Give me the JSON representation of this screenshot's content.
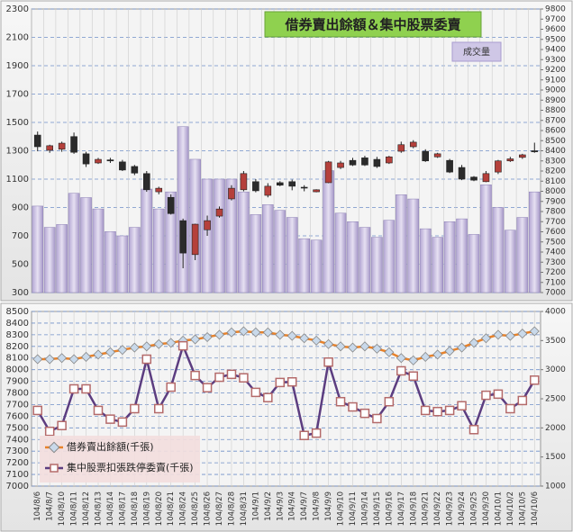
{
  "chart_data": [
    {
      "type": "candlestick",
      "title": "借券賣出餘額＆集中股票委賣",
      "ylim": [
        300,
        2300
      ],
      "yticks": [
        300,
        500,
        700,
        900,
        1100,
        1300,
        1500,
        1700,
        1900,
        2100,
        2300
      ],
      "y2lim": [
        7000,
        9800
      ],
      "y2ticks": [
        7000,
        7100,
        7200,
        7300,
        7400,
        7500,
        7600,
        7700,
        7800,
        7900,
        8000,
        8100,
        8200,
        8300,
        8400,
        8500,
        8600,
        8700,
        8800,
        8900,
        9000,
        9100,
        9200,
        9300,
        9400,
        9500,
        9600,
        9700,
        9800
      ],
      "grid": true,
      "series": [
        {
          "name": "成交量",
          "type": "bar",
          "color": "#c9bfe0",
          "values": [
            910,
            760,
            780,
            1000,
            970,
            890,
            730,
            700,
            760,
            1030,
            890,
            1010,
            1470,
            1240,
            1100,
            1100,
            1100,
            1010,
            850,
            920,
            880,
            830,
            680,
            670,
            1160,
            860,
            800,
            760,
            690,
            810,
            990,
            960,
            750,
            690,
            800,
            820,
            710,
            1060,
            900,
            740,
            830,
            1010
          ]
        },
        {
          "type": "candlestick",
          "axis": "y2",
          "up_color": "#b5403b",
          "down_color": "#2b2b2b",
          "open": [
            8555,
            8405,
            8415,
            8540,
            8370,
            8280,
            8310,
            8290,
            8245,
            8175,
            7995,
            7940,
            7710,
            7375,
            7620,
            7755,
            7925,
            8015,
            8095,
            7960,
            8085,
            8095,
            8040,
            7995,
            8085,
            8235,
            8305,
            8330,
            8315,
            8280,
            8395,
            8440,
            8395,
            8340,
            8305,
            8235,
            8140,
            8095,
            8190,
            8300,
            8335,
            8400
          ],
          "high": [
            8590,
            8460,
            8490,
            8580,
            8390,
            8330,
            8330,
            8310,
            8260,
            8200,
            8045,
            7970,
            7730,
            7680,
            7760,
            7850,
            8060,
            8200,
            8120,
            8080,
            8100,
            8115,
            8060,
            8020,
            8300,
            8300,
            8330,
            8350,
            8340,
            8350,
            8490,
            8505,
            8415,
            8380,
            8320,
            8260,
            8150,
            8200,
            8310,
            8340,
            8370,
            8480
          ],
          "low": [
            8395,
            8380,
            8390,
            8370,
            8240,
            8270,
            8280,
            8200,
            8160,
            7995,
            7970,
            7770,
            7240,
            7320,
            7560,
            7740,
            7910,
            8000,
            7990,
            7940,
            8050,
            8010,
            8000,
            7990,
            8080,
            8220,
            8250,
            8250,
            8230,
            8270,
            8380,
            8425,
            8290,
            8330,
            8180,
            8110,
            8100,
            8090,
            8170,
            8290,
            8320,
            8380
          ],
          "close": [
            8440,
            8450,
            8475,
            8385,
            8270,
            8315,
            8300,
            8210,
            8180,
            8015,
            8030,
            7780,
            7390,
            7675,
            7710,
            7825,
            8030,
            8175,
            8005,
            8050,
            8060,
            8050,
            8035,
            8015,
            8290,
            8280,
            8260,
            8260,
            8245,
            8340,
            8460,
            8485,
            8300,
            8370,
            8190,
            8120,
            8110,
            8175,
            8300,
            8320,
            8360,
            8390
          ]
        }
      ]
    },
    {
      "type": "line",
      "categories": [
        "104/8/6",
        "104/8/7",
        "104/8/10",
        "104/8/11",
        "104/8/12",
        "104/8/13",
        "104/8/14",
        "104/8/17",
        "104/8/18",
        "104/8/19",
        "104/8/20",
        "104/8/21",
        "104/8/24",
        "104/8/25",
        "104/8/26",
        "104/8/27",
        "104/8/28",
        "104/8/31",
        "104/9/1",
        "104/9/2",
        "104/9/3",
        "104/9/4",
        "104/9/7",
        "104/9/8",
        "104/9/9",
        "104/9/10",
        "104/9/11",
        "104/9/14",
        "104/9/15",
        "104/9/16",
        "104/9/17",
        "104/9/18",
        "104/9/21",
        "104/9/22",
        "104/9/23",
        "104/9/24",
        "104/9/25",
        "104/9/30",
        "104/10/1",
        "104/10/2",
        "104/10/5",
        "104/10/6"
      ],
      "ylim": [
        7000,
        8500
      ],
      "yticks": [
        7000,
        7100,
        7200,
        7300,
        7400,
        7500,
        7600,
        7700,
        7800,
        7900,
        8000,
        8100,
        8200,
        8300,
        8400,
        8500
      ],
      "y2lim": [
        1000,
        4000
      ],
      "y2ticks": [
        1000,
        1500,
        2000,
        2500,
        3000,
        3500,
        4000
      ],
      "grid": true,
      "series": [
        {
          "name": "借券賣出餘額(千張)",
          "color": "#e8822a",
          "marker_color": "#c9d9ea",
          "values": [
            8090,
            8090,
            8100,
            8090,
            8110,
            8130,
            8150,
            8170,
            8190,
            8200,
            8220,
            8230,
            8250,
            8260,
            8280,
            8300,
            8320,
            8330,
            8320,
            8320,
            8300,
            8290,
            8270,
            8250,
            8220,
            8200,
            8190,
            8200,
            8180,
            8150,
            8100,
            8080,
            8110,
            8130,
            8160,
            8190,
            8230,
            8270,
            8300,
            8290,
            8310,
            8330
          ]
        },
        {
          "name": "集中股票扣張跌停委賣(千張)",
          "color": "#5c3d80",
          "marker_color": "#b46a6a",
          "axis": "y2",
          "values": [
            2300,
            1940,
            2040,
            2670,
            2670,
            2300,
            2150,
            2100,
            2330,
            3180,
            2330,
            2700,
            3410,
            2900,
            2690,
            2870,
            2920,
            2860,
            2610,
            2520,
            2780,
            2790,
            1870,
            1910,
            3130,
            2450,
            2360,
            2250,
            2160,
            2450,
            2980,
            2890,
            2300,
            2280,
            2300,
            2380,
            1970,
            2560,
            2580,
            2330,
            2470,
            2820
          ]
        }
      ]
    }
  ]
}
